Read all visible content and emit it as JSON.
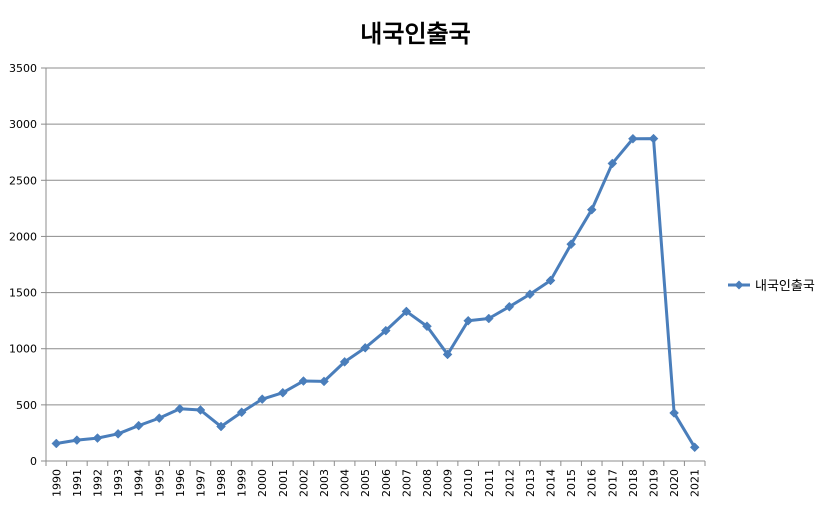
{
  "chart_data": {
    "type": "line",
    "title": "내국인출국",
    "xlabel": "",
    "ylabel": "",
    "ylim": [
      0,
      3500
    ],
    "yticks": [
      0,
      500,
      1000,
      1500,
      2000,
      2500,
      3000,
      3500
    ],
    "grid": true,
    "legend_position": "right",
    "color": "#4A7EBB",
    "categories": [
      "1990",
      "1991",
      "1992",
      "1993",
      "1994",
      "1995",
      "1996",
      "1997",
      "1998",
      "1999",
      "2000",
      "2001",
      "2002",
      "2003",
      "2004",
      "2005",
      "2006",
      "2007",
      "2008",
      "2009",
      "2010",
      "2011",
      "2012",
      "2013",
      "2014",
      "2015",
      "2016",
      "2017",
      "2018",
      "2019",
      "2020",
      "2021"
    ],
    "series": [
      {
        "name": "내국인출국",
        "values": [
          156,
          186,
          204,
          242,
          315,
          382,
          465,
          454,
          307,
          434,
          551,
          608,
          712,
          709,
          883,
          1008,
          1161,
          1332,
          1200,
          949,
          1249,
          1269,
          1374,
          1485,
          1608,
          1931,
          2238,
          2650,
          2870,
          2871,
          428,
          122
        ]
      }
    ]
  }
}
